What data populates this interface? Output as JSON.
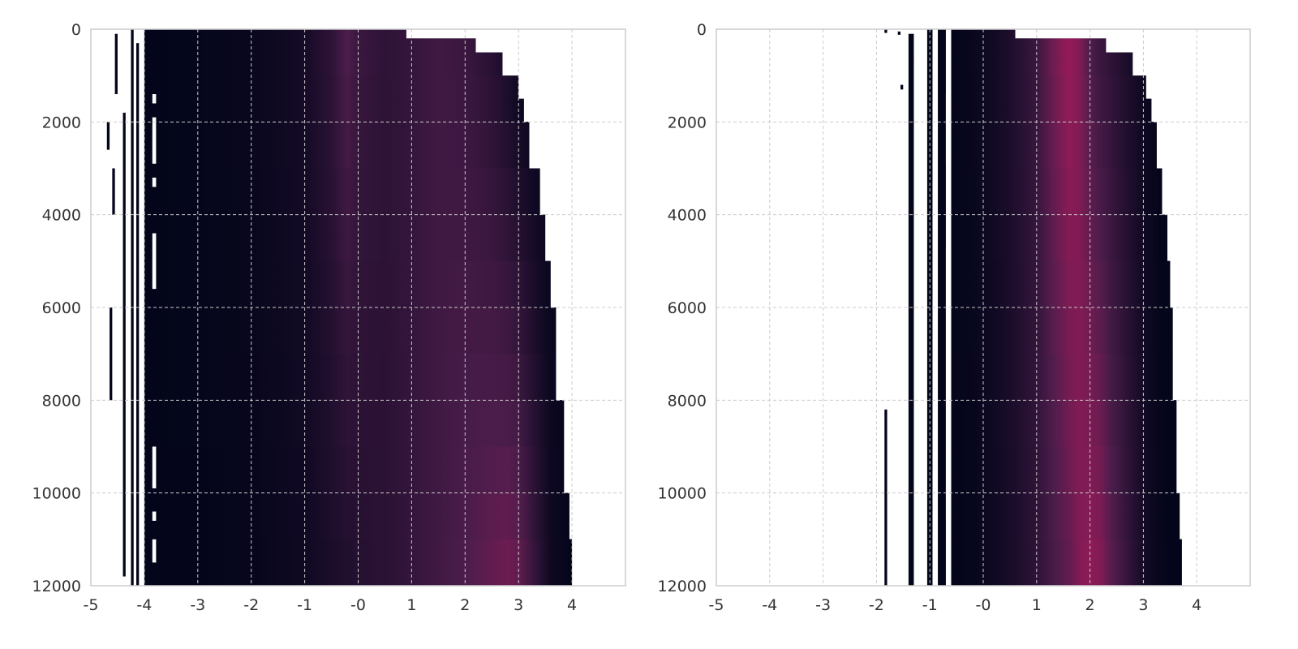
{
  "colors": {
    "background": "#ffffff",
    "frame": "#cccccc",
    "grid": "#cccccc",
    "low": "#03051a",
    "mid": "#4c1d4b",
    "high": "#a11a5b"
  },
  "chart_data": [
    {
      "type": "heatmap",
      "xlim": [
        -5,
        5
      ],
      "ylim": [
        12000,
        0
      ],
      "x_ticks": [
        -5,
        -4,
        -3,
        -2,
        -1,
        0,
        1,
        2,
        3,
        4
      ],
      "x_tick_labels": [
        "-5",
        "-4",
        "-3",
        "-2",
        "-1",
        "-0",
        "1",
        "2",
        "3",
        "4"
      ],
      "y_ticks": [
        0,
        2000,
        4000,
        6000,
        8000,
        10000,
        12000
      ],
      "y_tick_labels": [
        "0",
        "2000",
        "4000",
        "6000",
        "8000",
        "10000",
        "12000"
      ],
      "grid": true,
      "band_left_edge": -4.0,
      "density_profile": {
        "x": [
          -4.0,
          -3.0,
          -2.0,
          -1.0,
          -0.5,
          -0.2,
          0.0,
          0.5,
          1.0,
          1.5,
          2.0,
          2.5,
          2.8,
          3.0,
          3.3,
          3.6,
          4.0
        ],
        "intensity_top": [
          0.0,
          0.02,
          0.05,
          0.15,
          0.35,
          0.6,
          0.45,
          0.35,
          0.4,
          0.5,
          0.45,
          0.3,
          0.15,
          0.05,
          0.0,
          0.0,
          0.0
        ],
        "intensity_bottom": [
          0.0,
          0.01,
          0.03,
          0.1,
          0.2,
          0.25,
          0.28,
          0.32,
          0.4,
          0.5,
          0.6,
          0.7,
          0.75,
          0.7,
          0.4,
          0.1,
          0.0
        ]
      },
      "right_edge": {
        "step": [
          0,
          200,
          500,
          1000,
          1500,
          2000,
          3000,
          4000,
          5000,
          6000,
          8000,
          10000,
          11000,
          12000
        ],
        "x": [
          0.9,
          2.2,
          2.7,
          3.0,
          3.1,
          3.2,
          3.4,
          3.5,
          3.6,
          3.7,
          3.85,
          3.95,
          4.0,
          4.0
        ]
      },
      "sparse_columns": [
        {
          "x0": -4.55,
          "x1": -4.5,
          "y0": 100,
          "y1": 1400
        },
        {
          "x0": -4.4,
          "x1": -4.35,
          "y0": 1800,
          "y1": 11800
        },
        {
          "x0": -4.25,
          "x1": -4.2,
          "y0": 0,
          "y1": 12000
        },
        {
          "x0": -4.15,
          "x1": -4.1,
          "y0": 300,
          "y1": 12000
        },
        {
          "x0": -4.7,
          "x1": -4.65,
          "y0": 2000,
          "y1": 2600
        },
        {
          "x0": -4.6,
          "x1": -4.55,
          "y0": 3000,
          "y1": 4000
        },
        {
          "x0": -4.65,
          "x1": -4.6,
          "y0": 6000,
          "y1": 8000
        }
      ],
      "gap_stripes": [
        {
          "x0": -3.85,
          "x1": -3.78,
          "y0": 1400,
          "y1": 1600
        },
        {
          "x0": -3.85,
          "x1": -3.78,
          "y0": 1900,
          "y1": 2900
        },
        {
          "x0": -3.85,
          "x1": -3.78,
          "y0": 3200,
          "y1": 3400
        },
        {
          "x0": -3.85,
          "x1": -3.78,
          "y0": 4400,
          "y1": 5600
        },
        {
          "x0": -3.85,
          "x1": -3.78,
          "y0": 9000,
          "y1": 9900
        },
        {
          "x0": -3.85,
          "x1": -3.78,
          "y0": 10400,
          "y1": 10600
        },
        {
          "x0": -3.85,
          "x1": -3.78,
          "y0": 11000,
          "y1": 11500
        }
      ]
    },
    {
      "type": "heatmap",
      "xlim": [
        -5,
        5
      ],
      "ylim": [
        12000,
        0
      ],
      "x_ticks": [
        -5,
        -4,
        -3,
        -2,
        -1,
        0,
        1,
        2,
        3,
        4
      ],
      "x_tick_labels": [
        "-5",
        "-4",
        "-3",
        "-2",
        "-1",
        "-0",
        "1",
        "2",
        "3",
        "4"
      ],
      "y_ticks": [
        0,
        2000,
        4000,
        6000,
        8000,
        10000,
        12000
      ],
      "y_tick_labels": [
        "0",
        "2000",
        "4000",
        "6000",
        "8000",
        "10000",
        "12000"
      ],
      "grid": true,
      "band_left_edge": -0.6,
      "density_profile": {
        "x": [
          -0.6,
          -0.2,
          0.2,
          0.6,
          1.0,
          1.3,
          1.6,
          1.8,
          2.0,
          2.2,
          2.4,
          2.7,
          3.0,
          3.3,
          3.6
        ],
        "intensity_top": [
          0.0,
          0.05,
          0.12,
          0.25,
          0.45,
          0.75,
          0.95,
          0.85,
          0.6,
          0.45,
          0.35,
          0.2,
          0.08,
          0.0,
          0.0
        ],
        "intensity_bottom": [
          0.0,
          0.03,
          0.1,
          0.2,
          0.35,
          0.55,
          0.7,
          0.85,
          0.9,
          0.85,
          0.65,
          0.4,
          0.15,
          0.03,
          0.0
        ]
      },
      "right_edge": {
        "step": [
          0,
          200,
          500,
          1000,
          1500,
          2000,
          3000,
          4000,
          5000,
          6000,
          8000,
          10000,
          11000,
          12000
        ],
        "x": [
          0.6,
          2.3,
          2.8,
          3.05,
          3.15,
          3.25,
          3.35,
          3.45,
          3.5,
          3.55,
          3.62,
          3.68,
          3.72,
          3.75
        ]
      },
      "sparse_columns": [
        {
          "x0": -1.4,
          "x1": -1.3,
          "y0": 100,
          "y1": 12000
        },
        {
          "x0": -1.05,
          "x1": -0.95,
          "y0": 0,
          "y1": 12000
        },
        {
          "x0": -0.85,
          "x1": -0.7,
          "y0": 0,
          "y1": 12000
        },
        {
          "x0": -1.85,
          "x1": -1.8,
          "y0": 8200,
          "y1": 12000
        },
        {
          "x0": -1.85,
          "x1": -1.8,
          "y0": 0,
          "y1": 80
        },
        {
          "x0": -1.6,
          "x1": -1.55,
          "y0": 50,
          "y1": 120
        },
        {
          "x0": -1.35,
          "x1": -1.3,
          "y0": 600,
          "y1": 700
        },
        {
          "x0": -1.55,
          "x1": -1.5,
          "y0": 1200,
          "y1": 1300
        }
      ],
      "gap_stripes": [
        {
          "x0": -0.92,
          "x1": -0.86,
          "y0": 100,
          "y1": 12000
        },
        {
          "x0": -0.7,
          "x1": -0.62,
          "y0": 1400,
          "y1": 2900
        },
        {
          "x0": -0.7,
          "x1": -0.62,
          "y0": 4700,
          "y1": 10600
        }
      ]
    }
  ]
}
